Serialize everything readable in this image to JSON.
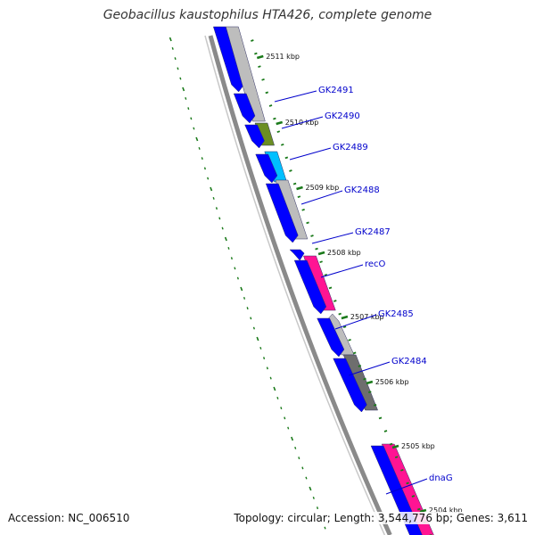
{
  "title": "Geobacillus kaustophilus HTA426, complete genome",
  "footer": {
    "accession": "Accession: NC_006510",
    "summary": "Topology: circular; Length: 3,544,776 bp; Genes: 3,611"
  },
  "colors": {
    "backbone": "#8a8a8a",
    "forward_gene": "#0000ff",
    "grey_gene": "#bdbdbd",
    "dark_grey_gene": "#6e6e6e",
    "olive_gene": "#6b8e23",
    "cyan_gene": "#00bfff",
    "magenta_gene": "#ff1493",
    "tick": "#1a7a1a",
    "label_line": "#0000cc"
  },
  "ruler_labels": [
    "2511 kbp",
    "2510 kbp",
    "2509 kbp",
    "2508 kbp",
    "2507 kbp",
    "2506 kbp",
    "2505 kbp",
    "2504 kbp"
  ],
  "gene_labels": [
    "GK2491",
    "GK2490",
    "GK2489",
    "GK2488",
    "GK2487",
    "recO",
    "GK2485",
    "GK2484",
    "dnaG"
  ]
}
